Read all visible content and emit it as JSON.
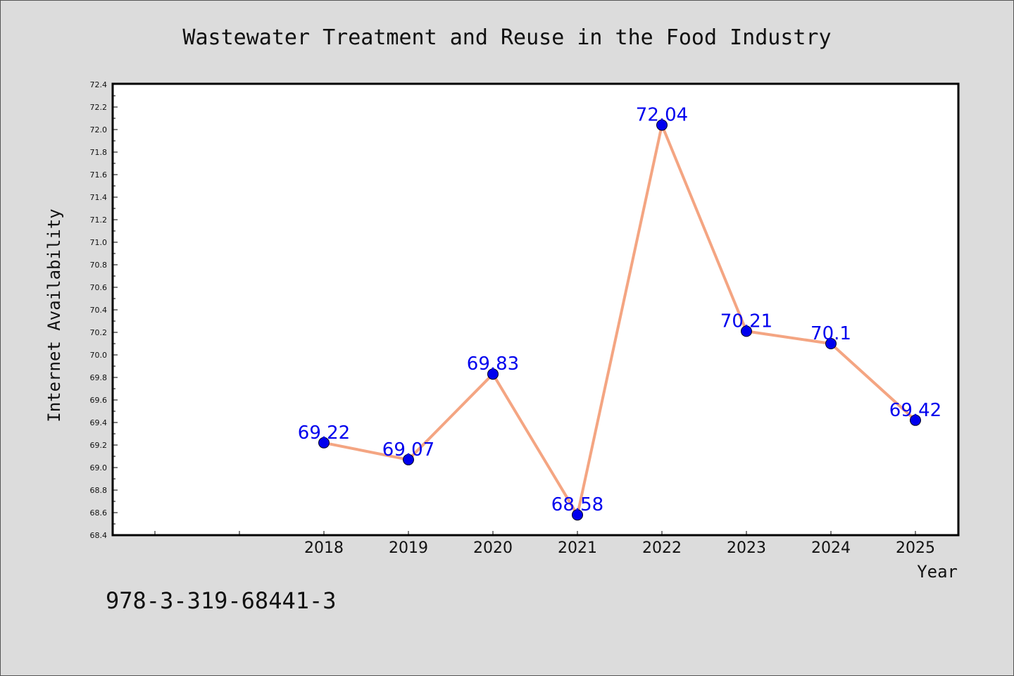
{
  "chart_data": {
    "type": "line",
    "title": "Wastewater Treatment and Reuse in the Food Industry",
    "xlabel": "Year",
    "ylabel": "Internet Availability",
    "categories": [
      "2018",
      "2019",
      "2020",
      "2021",
      "2022",
      "2023",
      "2024",
      "2025"
    ],
    "series": [
      {
        "values": [
          69.22,
          69.07,
          69.83,
          68.58,
          72.04,
          70.21,
          70.1,
          69.42
        ],
        "labels": [
          "69.22",
          "69.07",
          "69.83",
          "68.58",
          "72.04",
          "70.21",
          "70.1",
          "69.42"
        ]
      }
    ],
    "ylim": [
      68.4,
      72.4
    ],
    "yticks": [
      "68.4",
      "68.6",
      "68.8",
      "69.0",
      "69.2",
      "69.4",
      "69.6",
      "69.8",
      "70.0",
      "70.2",
      "70.4",
      "70.6",
      "70.8",
      "71.0",
      "71.2",
      "71.4",
      "71.6",
      "71.8",
      "72.0",
      "72.2",
      "72.4"
    ],
    "grid": false,
    "colors": {
      "line": "#f4a582",
      "marker": "#0000ee",
      "label": "#0000ee"
    }
  },
  "footer": {
    "text": "978-3-319-68441-3"
  }
}
